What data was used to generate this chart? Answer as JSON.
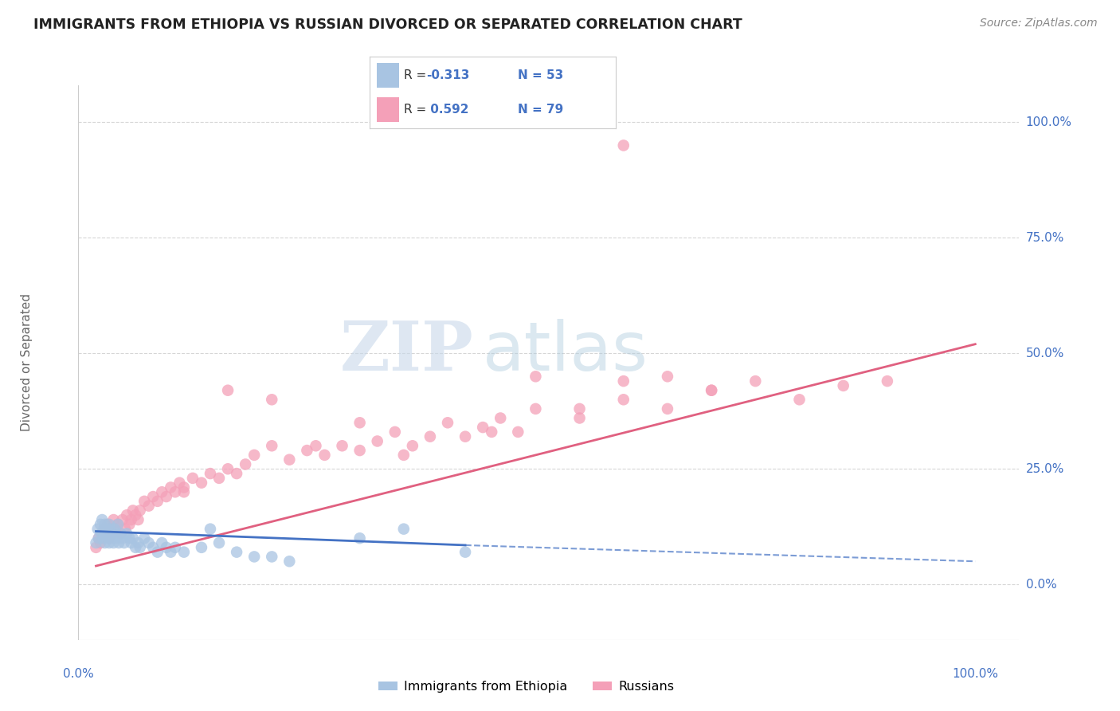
{
  "title": "IMMIGRANTS FROM ETHIOPIA VS RUSSIAN DIVORCED OR SEPARATED CORRELATION CHART",
  "source": "Source: ZipAtlas.com",
  "ylabel": "Divorced or Separated",
  "watermark_zip": "ZIP",
  "watermark_atlas": "atlas",
  "legend_blue_r": "-0.313",
  "legend_blue_n": "53",
  "legend_pink_r": "0.592",
  "legend_pink_n": "79",
  "blue_color": "#a8c4e2",
  "pink_color": "#f4a0b8",
  "blue_line_color": "#4472c4",
  "pink_line_color": "#e06080",
  "ytick_labels": [
    "0.0%",
    "25.0%",
    "50.0%",
    "75.0%",
    "100.0%"
  ],
  "ytick_values": [
    0.0,
    0.25,
    0.5,
    0.75,
    1.0
  ],
  "xlim": [
    -0.02,
    1.05
  ],
  "ylim": [
    -0.12,
    1.08
  ],
  "background": "#ffffff",
  "grid_color": "#cccccc",
  "blue_scatter_x": [
    0.0,
    0.002,
    0.003,
    0.005,
    0.006,
    0.007,
    0.008,
    0.009,
    0.01,
    0.01,
    0.012,
    0.013,
    0.014,
    0.015,
    0.015,
    0.016,
    0.017,
    0.018,
    0.02,
    0.021,
    0.022,
    0.023,
    0.025,
    0.026,
    0.028,
    0.03,
    0.032,
    0.035,
    0.038,
    0.04,
    0.042,
    0.045,
    0.048,
    0.05,
    0.055,
    0.06,
    0.065,
    0.07,
    0.075,
    0.08,
    0.085,
    0.09,
    0.1,
    0.12,
    0.13,
    0.14,
    0.16,
    0.18,
    0.2,
    0.22,
    0.3,
    0.35,
    0.42
  ],
  "blue_scatter_y": [
    0.09,
    0.12,
    0.1,
    0.13,
    0.11,
    0.14,
    0.1,
    0.12,
    0.09,
    0.13,
    0.11,
    0.12,
    0.1,
    0.09,
    0.13,
    0.12,
    0.11,
    0.1,
    0.09,
    0.12,
    0.11,
    0.1,
    0.13,
    0.09,
    0.11,
    0.1,
    0.09,
    0.11,
    0.1,
    0.09,
    0.1,
    0.08,
    0.09,
    0.08,
    0.1,
    0.09,
    0.08,
    0.07,
    0.09,
    0.08,
    0.07,
    0.08,
    0.07,
    0.08,
    0.12,
    0.09,
    0.07,
    0.06,
    0.06,
    0.05,
    0.1,
    0.12,
    0.07
  ],
  "pink_scatter_x": [
    0.0,
    0.003,
    0.005,
    0.007,
    0.008,
    0.01,
    0.012,
    0.013,
    0.015,
    0.016,
    0.018,
    0.02,
    0.022,
    0.025,
    0.028,
    0.03,
    0.033,
    0.035,
    0.038,
    0.04,
    0.042,
    0.045,
    0.048,
    0.05,
    0.055,
    0.06,
    0.065,
    0.07,
    0.075,
    0.08,
    0.085,
    0.09,
    0.095,
    0.1,
    0.11,
    0.12,
    0.13,
    0.14,
    0.15,
    0.16,
    0.17,
    0.18,
    0.2,
    0.22,
    0.24,
    0.26,
    0.28,
    0.3,
    0.32,
    0.34,
    0.36,
    0.38,
    0.4,
    0.42,
    0.44,
    0.46,
    0.48,
    0.5,
    0.55,
    0.6,
    0.65,
    0.7,
    0.75,
    0.8,
    0.2,
    0.25,
    0.3,
    0.1,
    0.15,
    0.35,
    0.45,
    0.55,
    0.65,
    0.85,
    0.5,
    0.6,
    0.7,
    0.9,
    0.6
  ],
  "pink_scatter_y": [
    0.08,
    0.1,
    0.09,
    0.11,
    0.1,
    0.12,
    0.11,
    0.13,
    0.1,
    0.12,
    0.11,
    0.14,
    0.12,
    0.13,
    0.11,
    0.14,
    0.12,
    0.15,
    0.13,
    0.14,
    0.16,
    0.15,
    0.14,
    0.16,
    0.18,
    0.17,
    0.19,
    0.18,
    0.2,
    0.19,
    0.21,
    0.2,
    0.22,
    0.21,
    0.23,
    0.22,
    0.24,
    0.23,
    0.25,
    0.24,
    0.26,
    0.28,
    0.3,
    0.27,
    0.29,
    0.28,
    0.3,
    0.29,
    0.31,
    0.33,
    0.3,
    0.32,
    0.35,
    0.32,
    0.34,
    0.36,
    0.33,
    0.38,
    0.36,
    0.4,
    0.38,
    0.42,
    0.44,
    0.4,
    0.4,
    0.3,
    0.35,
    0.2,
    0.42,
    0.28,
    0.33,
    0.38,
    0.45,
    0.43,
    0.45,
    0.44,
    0.42,
    0.44,
    0.95
  ]
}
